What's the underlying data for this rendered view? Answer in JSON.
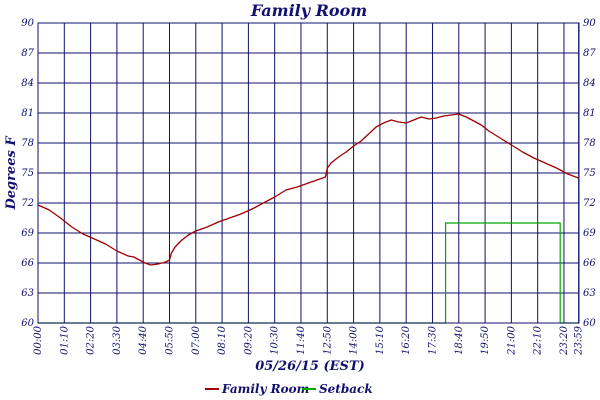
{
  "chart_data": {
    "type": "line",
    "title": "Family Room",
    "xlabel": "05/26/15 (EST)",
    "ylabel": "Degrees F",
    "ylim": [
      60,
      90
    ],
    "y_ticks": [
      60,
      63,
      66,
      69,
      72,
      75,
      78,
      81,
      84,
      87,
      90
    ],
    "x_range_minutes": [
      0,
      1440
    ],
    "x_tick_labels": [
      "00:00",
      "01:10",
      "02:20",
      "03:30",
      "04:40",
      "05:50",
      "07:00",
      "08:10",
      "09:20",
      "10:30",
      "11:40",
      "12:50",
      "14:00",
      "15:10",
      "16:20",
      "17:30",
      "18:40",
      "19:50",
      "21:00",
      "22:10",
      "23:20",
      "23:59"
    ],
    "x_tick_minutes": [
      0,
      70,
      140,
      210,
      280,
      350,
      420,
      490,
      560,
      630,
      700,
      770,
      840,
      910,
      980,
      1050,
      1120,
      1190,
      1260,
      1330,
      1400,
      1439
    ],
    "grid": true,
    "legend_position": "bottom",
    "series": [
      {
        "name": "Family Room",
        "color": "#a00000",
        "x": [
          0,
          30,
          60,
          90,
          120,
          150,
          180,
          210,
          240,
          255,
          270,
          285,
          300,
          320,
          340,
          350,
          355,
          365,
          380,
          400,
          420,
          450,
          480,
          510,
          540,
          570,
          600,
          630,
          660,
          690,
          720,
          750,
          765,
          770,
          780,
          800,
          820,
          840,
          860,
          880,
          900,
          920,
          940,
          960,
          980,
          1000,
          1020,
          1040,
          1060,
          1080,
          1100,
          1120,
          1140,
          1160,
          1180,
          1200,
          1230,
          1260,
          1290,
          1320,
          1350,
          1380,
          1410,
          1439
        ],
        "y": [
          71.8,
          71.3,
          70.5,
          69.6,
          68.9,
          68.4,
          67.9,
          67.2,
          66.7,
          66.6,
          66.3,
          66.0,
          65.8,
          65.9,
          66.1,
          66.3,
          67.0,
          67.6,
          68.2,
          68.8,
          69.2,
          69.6,
          70.1,
          70.5,
          70.9,
          71.4,
          72.0,
          72.6,
          73.3,
          73.6,
          74.0,
          74.4,
          74.6,
          75.5,
          76.0,
          76.6,
          77.1,
          77.7,
          78.2,
          78.9,
          79.6,
          80.0,
          80.3,
          80.1,
          80.0,
          80.3,
          80.6,
          80.4,
          80.5,
          80.7,
          80.8,
          80.9,
          80.6,
          80.2,
          79.8,
          79.2,
          78.5,
          77.8,
          77.1,
          76.5,
          76.0,
          75.5,
          74.9,
          74.5
        ]
      },
      {
        "name": "Setback",
        "color": "#00a800",
        "x": [
          0,
          1085,
          1085,
          1390,
          1390,
          1439
        ],
        "y": [
          60,
          60,
          70,
          70,
          60,
          60
        ]
      }
    ]
  }
}
